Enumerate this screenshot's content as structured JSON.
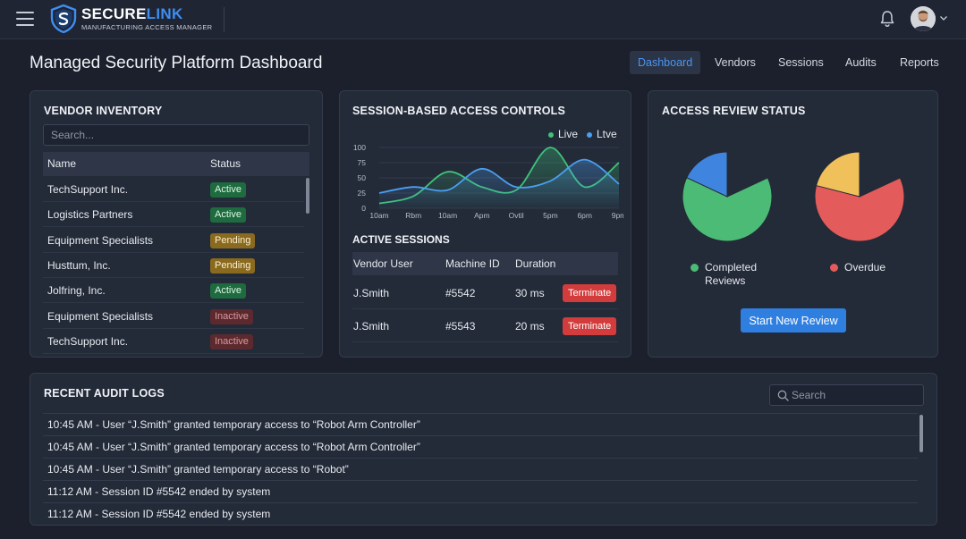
{
  "app": {
    "brand_name_1": "SECURE",
    "brand_name_2": "LINK",
    "brand_subtitle": "MANUFACTURING ACCESS MANAGER"
  },
  "header": {
    "title": "Managed Security Platform Dashboard",
    "nav": [
      {
        "label": "Dashboard",
        "active": true
      },
      {
        "label": "Vendors",
        "active": false
      },
      {
        "label": "Sessions",
        "active": false
      },
      {
        "label": "Audits",
        "active": false
      },
      {
        "label": "Reports",
        "active": false
      }
    ]
  },
  "vendor_inventory": {
    "title": "VENDOR INVENTORY",
    "search_placeholder": "Search...",
    "columns": [
      "Name",
      "Status"
    ],
    "rows": [
      {
        "name": "TechSupport Inc.",
        "status": "Active"
      },
      {
        "name": "Logistics Partners",
        "status": "Active"
      },
      {
        "name": "Equipment Specialists",
        "status": "Pending"
      },
      {
        "name": "Husttum, Inc.",
        "status": "Pending"
      },
      {
        "name": "Jolfring, Inc.",
        "status": "Active"
      },
      {
        "name": "Equipment Specialists",
        "status": "Inactive"
      },
      {
        "name": "TechSupport Inc.",
        "status": "Inactive"
      }
    ]
  },
  "session_controls": {
    "title": "SESSION-BASED ACCESS CONTROLS",
    "legend": [
      {
        "label": "Live",
        "color": "#3fc27a"
      },
      {
        "label": "Ltve",
        "color": "#4a9ff0"
      }
    ],
    "chart_data": {
      "type": "line",
      "x": [
        "10am",
        "Rbm",
        "10am",
        "Apm",
        "Ovtil",
        "5pm",
        "6pm",
        "9pm"
      ],
      "ylim": [
        0,
        100
      ],
      "yticks": [
        0,
        25,
        50,
        75,
        100
      ],
      "series": [
        {
          "name": "Live",
          "color": "#3fc27a",
          "values": [
            8,
            20,
            60,
            35,
            30,
            100,
            35,
            75
          ]
        },
        {
          "name": "Ltve",
          "color": "#4a9ff0",
          "values": [
            25,
            35,
            30,
            65,
            35,
            45,
            80,
            40
          ]
        }
      ]
    },
    "active_sessions": {
      "title": "ACTIVE SESSIONS",
      "columns": [
        "Vendor User",
        "Machine ID",
        "Duration"
      ],
      "rows": [
        {
          "user": "J.Smith",
          "machine": "#5542",
          "duration": "30 ms",
          "action": "Terminate"
        },
        {
          "user": "J.Smith",
          "machine": "#5543",
          "duration": "20 ms",
          "action": "Terminate"
        }
      ]
    }
  },
  "access_review": {
    "title": "ACCESS REVIEW STATUS",
    "pies": [
      {
        "slices": [
          {
            "value": 82,
            "color": "#4cbb75"
          },
          {
            "value": 18,
            "color": "#3f85e0"
          }
        ]
      },
      {
        "slices": [
          {
            "value": 79,
            "color": "#e35b5b"
          },
          {
            "value": 21,
            "color": "#f0c05a"
          }
        ]
      }
    ],
    "legend": [
      {
        "label": "Completed Reviews",
        "color": "#4cbb75"
      },
      {
        "label": "Overdue",
        "color": "#e35b5b"
      }
    ],
    "button_label": "Start New Review"
  },
  "audit_logs": {
    "title": "RECENT AUDIT LOGS",
    "search_placeholder": "Search",
    "entries": [
      "10:45 AM - User “J.Smith” granted temporary access to “Robot Arm Controller”",
      "10:45 AM - User “J.Smith” granted temporary access to “Robot Arm Controller”",
      "10:45 AM - User “J.Smith” granted temporary access to “Robot”",
      "11:12 AM - Session ID #5542 ended by system",
      "11:12 AM - Session ID #5542 ended by system"
    ]
  }
}
